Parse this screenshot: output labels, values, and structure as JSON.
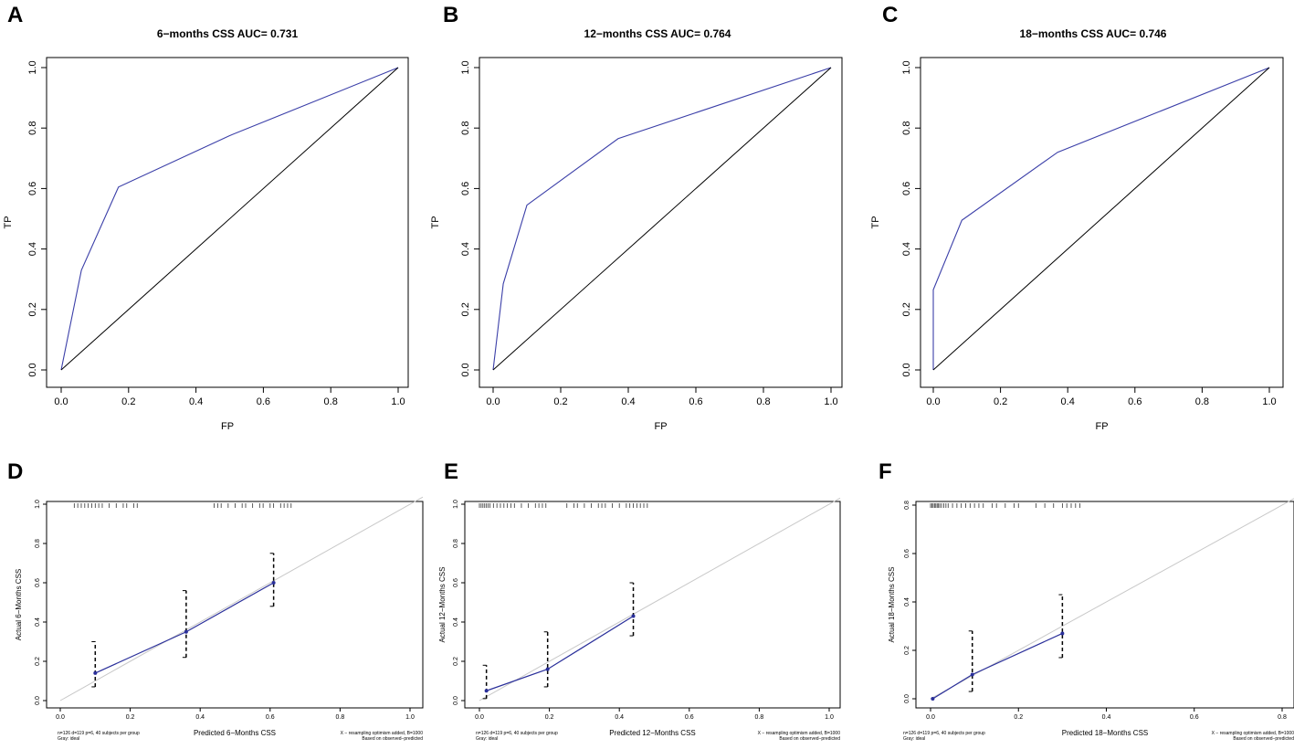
{
  "panel_letters": [
    "A",
    "B",
    "C",
    "D",
    "E",
    "F"
  ],
  "chart_data": [
    {
      "type": "line",
      "panel": "A",
      "title": "6−months CSS AUC= 0.731",
      "xlabel": "FP",
      "ylabel": "TP",
      "xlim": [
        0,
        1
      ],
      "ylim": [
        0,
        1
      ],
      "xticks": [
        "0.0",
        "0.2",
        "0.4",
        "0.6",
        "0.8",
        "1.0"
      ],
      "yticks": [
        "0.0",
        "0.2",
        "0.4",
        "0.6",
        "0.8",
        "1.0"
      ],
      "series": [
        {
          "name": "ROC",
          "x": [
            0,
            0.06,
            0.17,
            0.5,
            1.0
          ],
          "y": [
            0,
            0.33,
            0.605,
            0.775,
            1.0
          ]
        },
        {
          "name": "Reference",
          "x": [
            0,
            1
          ],
          "y": [
            0,
            1
          ]
        }
      ]
    },
    {
      "type": "line",
      "panel": "B",
      "title": "12−months CSS AUC= 0.764",
      "xlabel": "FP",
      "ylabel": "TP",
      "xlim": [
        0,
        1
      ],
      "ylim": [
        0,
        1
      ],
      "xticks": [
        "0.0",
        "0.2",
        "0.4",
        "0.6",
        "0.8",
        "1.0"
      ],
      "yticks": [
        "0.0",
        "0.2",
        "0.4",
        "0.6",
        "0.8",
        "1.0"
      ],
      "series": [
        {
          "name": "ROC",
          "x": [
            0,
            0.03,
            0.1,
            0.37,
            1.0
          ],
          "y": [
            0,
            0.285,
            0.545,
            0.765,
            1.0
          ]
        },
        {
          "name": "Reference",
          "x": [
            0,
            1
          ],
          "y": [
            0,
            1
          ]
        }
      ]
    },
    {
      "type": "line",
      "panel": "C",
      "title": "18−months CSS AUC= 0.746",
      "xlabel": "FP",
      "ylabel": "TP",
      "xlim": [
        0,
        1
      ],
      "ylim": [
        0,
        1
      ],
      "xticks": [
        "0.0",
        "0.2",
        "0.4",
        "0.6",
        "0.8",
        "1.0"
      ],
      "yticks": [
        "0.0",
        "0.2",
        "0.4",
        "0.6",
        "0.8",
        "1.0"
      ],
      "series": [
        {
          "name": "ROC",
          "x": [
            0,
            0,
            0.085,
            0.37,
            1.0
          ],
          "y": [
            0,
            0.265,
            0.495,
            0.72,
            1.0
          ]
        },
        {
          "name": "Reference",
          "x": [
            0,
            1
          ],
          "y": [
            0,
            1
          ]
        }
      ]
    },
    {
      "type": "scatter",
      "panel": "D",
      "title": "",
      "xlabel": "Predicted 6−Months CSS",
      "ylabel": "Actual 6−Months CSS",
      "xlim": [
        0,
        1
      ],
      "ylim": [
        0,
        1
      ],
      "xticks": [
        "0.0",
        "0.2",
        "0.4",
        "0.6",
        "0.8",
        "1.0"
      ],
      "yticks": [
        "0.0",
        "0.2",
        "0.4",
        "0.6",
        "0.8",
        "1.0"
      ],
      "points": {
        "x": [
          0.1,
          0.36,
          0.61
        ],
        "y": [
          0.14,
          0.35,
          0.6
        ]
      },
      "error_bars": {
        "low": [
          0.07,
          0.22,
          0.48
        ],
        "high": [
          0.3,
          0.56,
          0.75
        ]
      },
      "rug": [
        0.04,
        0.05,
        0.06,
        0.07,
        0.08,
        0.09,
        0.1,
        0.11,
        0.12,
        0.14,
        0.16,
        0.18,
        0.19,
        0.21,
        0.22,
        0.44,
        0.45,
        0.46,
        0.48,
        0.5,
        0.52,
        0.53,
        0.55,
        0.57,
        0.58,
        0.6,
        0.61,
        0.63,
        0.64,
        0.65,
        0.66
      ],
      "note_left": [
        "n=126 d=119 p=6, 40 subjects per group",
        "Gray: ideal"
      ],
      "note_right": [
        "X − resampling optimism added, B=1000",
        "Based on observed−predicted"
      ]
    },
    {
      "type": "scatter",
      "panel": "E",
      "title": "",
      "xlabel": "Predicted 12−Months CSS",
      "ylabel": "Actual 12−Months CSS",
      "xlim": [
        0,
        1
      ],
      "ylim": [
        0,
        1
      ],
      "xticks": [
        "0.0",
        "0.2",
        "0.4",
        "0.6",
        "0.8",
        "1.0"
      ],
      "yticks": [
        "0.0",
        "0.2",
        "0.4",
        "0.6",
        "0.8",
        "1.0"
      ],
      "points": {
        "x": [
          0.02,
          0.195,
          0.44
        ],
        "y": [
          0.05,
          0.16,
          0.43
        ]
      },
      "error_bars": {
        "low": [
          0.01,
          0.07,
          0.33
        ],
        "high": [
          0.18,
          0.35,
          0.6
        ]
      },
      "rug": [
        0.0,
        0.005,
        0.01,
        0.015,
        0.02,
        0.025,
        0.03,
        0.04,
        0.05,
        0.06,
        0.07,
        0.08,
        0.09,
        0.1,
        0.12,
        0.14,
        0.16,
        0.17,
        0.18,
        0.19,
        0.25,
        0.27,
        0.28,
        0.3,
        0.32,
        0.34,
        0.35,
        0.36,
        0.38,
        0.4,
        0.42,
        0.43,
        0.44,
        0.45,
        0.46,
        0.47,
        0.48
      ],
      "note_left": [
        "n=126 d=119 p=6, 40 subjects per group",
        "Gray: ideal"
      ],
      "note_right": [
        "X − resampling optimism added, B=1000",
        "Based on observed−predicted"
      ]
    },
    {
      "type": "scatter",
      "panel": "F",
      "title": "",
      "xlabel": "Predicted 18−Months CSS",
      "ylabel": "Actual 18−Months CSS",
      "xlim": [
        0,
        0.8
      ],
      "ylim": [
        0,
        0.8
      ],
      "xticks": [
        "0.0",
        "0.2",
        "0.4",
        "0.6",
        "0.8"
      ],
      "yticks": [
        "0.0",
        "0.2",
        "0.4",
        "0.6",
        "0.8"
      ],
      "points": {
        "x": [
          0.005,
          0.095,
          0.3
        ],
        "y": [
          0.0,
          0.1,
          0.27
        ]
      },
      "error_bars": {
        "low": [
          null,
          0.03,
          0.17
        ],
        "high": [
          null,
          0.28,
          0.43
        ]
      },
      "rug": [
        0.0,
        0.003,
        0.006,
        0.009,
        0.012,
        0.015,
        0.018,
        0.021,
        0.025,
        0.03,
        0.035,
        0.04,
        0.05,
        0.06,
        0.07,
        0.08,
        0.09,
        0.1,
        0.11,
        0.12,
        0.14,
        0.15,
        0.17,
        0.19,
        0.2,
        0.24,
        0.26,
        0.28,
        0.3,
        0.31,
        0.32,
        0.33,
        0.34
      ],
      "note_left": [
        "n=126 d=119 p=6, 40 subjects per group",
        "Gray: ideal"
      ],
      "note_right": [
        "X − resampling optimism added, B=1000",
        "Based on observed−predicted"
      ]
    }
  ]
}
